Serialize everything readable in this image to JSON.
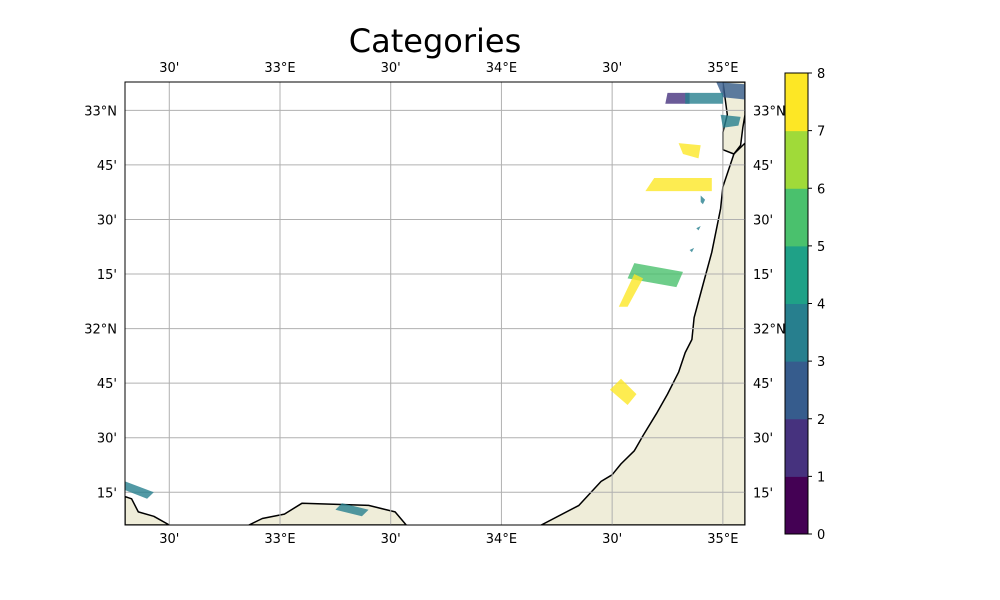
{
  "title": "Categories",
  "map": {
    "extent": {
      "lon_min": 32.3,
      "lon_max": 35.1,
      "lat_min": 31.1,
      "lat_max": 33.13
    },
    "land_color": "#efedd9",
    "coast_color": "#000000",
    "grid_color": "#b0b0b0",
    "gridlines": true,
    "lon_ticks": [
      {
        "value": 32.5,
        "label": "30'"
      },
      {
        "value": 33.0,
        "label": "33°E"
      },
      {
        "value": 33.5,
        "label": "30'"
      },
      {
        "value": 34.0,
        "label": "34°E"
      },
      {
        "value": 34.5,
        "label": "30'"
      },
      {
        "value": 35.0,
        "label": "35°E"
      }
    ],
    "lat_ticks": [
      {
        "value": 33.0,
        "label": "33°N"
      },
      {
        "value": 32.75,
        "label": "45'"
      },
      {
        "value": 32.5,
        "label": "30'"
      },
      {
        "value": 32.25,
        "label": "15'"
      },
      {
        "value": 32.0,
        "label": "32°N"
      },
      {
        "value": 31.75,
        "label": "45'"
      },
      {
        "value": 31.5,
        "label": "30'"
      },
      {
        "value": 31.25,
        "label": "15'"
      }
    ],
    "land_shapes": [
      {
        "name": "mainland",
        "points": [
          [
            34.18,
            31.1
          ],
          [
            34.35,
            31.19
          ],
          [
            34.45,
            31.3
          ],
          [
            34.5,
            31.33
          ],
          [
            34.54,
            31.38
          ],
          [
            34.6,
            31.44
          ],
          [
            34.64,
            31.51
          ],
          [
            34.7,
            31.61
          ],
          [
            34.75,
            31.7
          ],
          [
            34.8,
            31.8
          ],
          [
            34.83,
            31.89
          ],
          [
            34.86,
            31.95
          ],
          [
            34.87,
            32.05
          ],
          [
            34.91,
            32.2
          ],
          [
            34.95,
            32.35
          ],
          [
            34.99,
            32.55
          ],
          [
            35.0,
            32.65
          ],
          [
            35.05,
            32.8
          ],
          [
            35.1,
            32.85
          ],
          [
            35.1,
            31.1
          ]
        ]
      },
      {
        "name": "north-coast",
        "points": [
          [
            35.0,
            32.82
          ],
          [
            35.05,
            32.8
          ],
          [
            35.08,
            32.84
          ],
          [
            35.09,
            32.92
          ],
          [
            35.1,
            32.98
          ],
          [
            35.1,
            33.13
          ],
          [
            35.0,
            33.13
          ],
          [
            35.02,
            32.98
          ],
          [
            35.0,
            32.9
          ]
        ]
      },
      {
        "name": "sinai-peninsula",
        "points": [
          [
            32.86,
            31.1
          ],
          [
            32.92,
            31.13
          ],
          [
            33.02,
            31.15
          ],
          [
            33.1,
            31.2
          ],
          [
            33.4,
            31.19
          ],
          [
            33.52,
            31.16
          ],
          [
            33.57,
            31.1
          ]
        ]
      },
      {
        "name": "lagoon-shore",
        "points": [
          [
            32.3,
            31.23
          ],
          [
            32.33,
            31.22
          ],
          [
            32.36,
            31.16
          ],
          [
            32.43,
            31.14
          ],
          [
            32.5,
            31.1
          ],
          [
            32.3,
            31.1
          ]
        ]
      }
    ],
    "category_patches": [
      {
        "category": 1,
        "points": [
          [
            34.75,
            33.08
          ],
          [
            34.85,
            33.08
          ],
          [
            34.85,
            33.03
          ],
          [
            34.74,
            33.03
          ]
        ]
      },
      {
        "category": 2,
        "points": [
          [
            34.97,
            33.13
          ],
          [
            35.1,
            33.12
          ],
          [
            35.1,
            33.05
          ],
          [
            35.0,
            33.06
          ]
        ]
      },
      {
        "category": 3,
        "points": [
          [
            34.83,
            33.08
          ],
          [
            35.0,
            33.08
          ],
          [
            35.0,
            33.03
          ],
          [
            34.83,
            33.03
          ]
        ]
      },
      {
        "category": 3,
        "points": [
          [
            34.99,
            32.98
          ],
          [
            35.08,
            32.97
          ],
          [
            35.07,
            32.93
          ],
          [
            35.0,
            32.92
          ]
        ]
      },
      {
        "category": 3,
        "points": [
          [
            34.9,
            32.58
          ],
          [
            34.91,
            32.57
          ],
          [
            34.92,
            32.59
          ],
          [
            34.9,
            32.61
          ]
        ]
      },
      {
        "category": 3,
        "points": [
          [
            34.88,
            32.46
          ],
          [
            34.89,
            32.45
          ],
          [
            34.9,
            32.47
          ]
        ]
      },
      {
        "category": 3,
        "points": [
          [
            34.85,
            32.36
          ],
          [
            34.86,
            32.35
          ],
          [
            34.87,
            32.37
          ]
        ]
      },
      {
        "category": 3,
        "points": [
          [
            32.3,
            31.3
          ],
          [
            32.43,
            31.25
          ],
          [
            32.4,
            31.22
          ],
          [
            32.3,
            31.26
          ]
        ]
      },
      {
        "category": 3,
        "points": [
          [
            33.28,
            31.2
          ],
          [
            33.4,
            31.17
          ],
          [
            33.37,
            31.14
          ],
          [
            33.25,
            31.17
          ]
        ]
      },
      {
        "category": 5,
        "points": [
          [
            34.6,
            32.3
          ],
          [
            34.82,
            32.26
          ],
          [
            34.79,
            32.19
          ],
          [
            34.57,
            32.23
          ]
        ]
      },
      {
        "category": 7,
        "points": [
          [
            34.8,
            32.85
          ],
          [
            34.9,
            32.84
          ],
          [
            34.89,
            32.78
          ],
          [
            34.82,
            32.8
          ]
        ]
      },
      {
        "category": 7,
        "points": [
          [
            34.69,
            32.69
          ],
          [
            34.95,
            32.69
          ],
          [
            34.95,
            32.63
          ],
          [
            34.65,
            32.63
          ]
        ]
      },
      {
        "category": 7,
        "points": [
          [
            34.6,
            32.25
          ],
          [
            34.64,
            32.23
          ],
          [
            34.57,
            32.1
          ],
          [
            34.53,
            32.1
          ]
        ]
      },
      {
        "category": 7,
        "points": [
          [
            34.54,
            31.77
          ],
          [
            34.61,
            31.7
          ],
          [
            34.57,
            31.65
          ],
          [
            34.49,
            31.72
          ]
        ]
      }
    ]
  },
  "colorbar": {
    "ticks": [
      "0",
      "1",
      "2",
      "3",
      "4",
      "5",
      "6",
      "7",
      "8"
    ],
    "colors": [
      "#440154",
      "#46327e",
      "#365c8d",
      "#277f8e",
      "#1fa187",
      "#4ac16d",
      "#a0da39",
      "#fde725"
    ],
    "patch_colors": {
      "1": "#46327e",
      "2": "#365c8d",
      "3": "#277f8e",
      "5": "#4ac16d",
      "7": "#fde725"
    }
  }
}
